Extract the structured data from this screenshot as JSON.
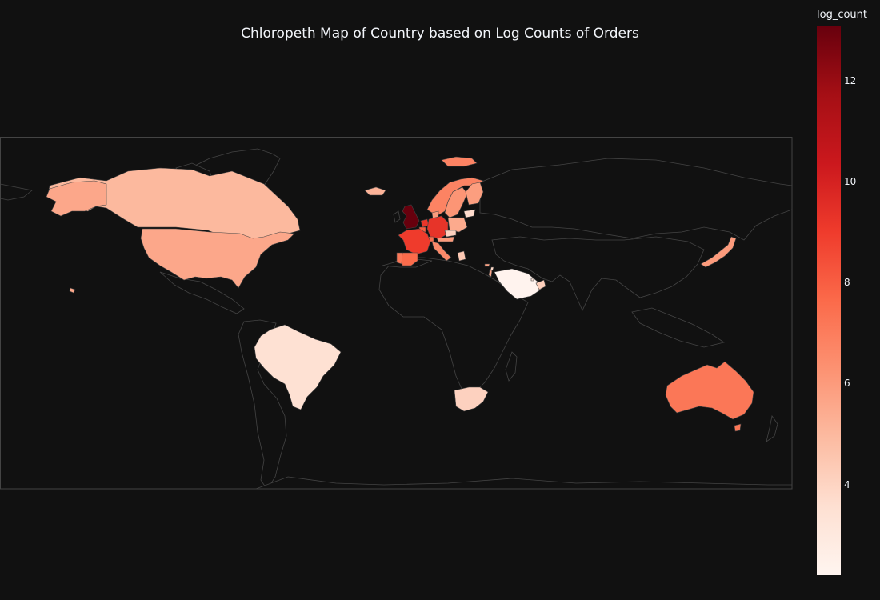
{
  "title": "Chloropeth Map of Country based on Log Counts of Orders",
  "colorbar": {
    "title": "log_count",
    "min": 2.2,
    "max": 13.1,
    "ticks": [
      "4",
      "6",
      "8",
      "10",
      "12"
    ],
    "tick_values": [
      4,
      6,
      8,
      10,
      12
    ]
  },
  "colors": {
    "background": "#111111",
    "land_outline": "#444444",
    "frame": "#444444",
    "scale": [
      "#fff5f0",
      "#fee0d2",
      "#fcbba1",
      "#fc9272",
      "#fb6a4a",
      "#ef3b2c",
      "#cb181d",
      "#a50f15",
      "#67000d"
    ]
  },
  "chart_data": {
    "type": "choropleth",
    "title": "Chloropeth Map of Country based on Log Counts of Orders",
    "color_variable": "log_count",
    "colorscale": "Reds",
    "range": [
      2.2,
      13.1
    ],
    "regions": [
      {
        "region": "United Kingdom",
        "value": 13.1
      },
      {
        "region": "Netherlands",
        "value": 9.2
      },
      {
        "region": "Germany",
        "value": 9.3
      },
      {
        "region": "France",
        "value": 9.0
      },
      {
        "region": "Spain",
        "value": 7.6
      },
      {
        "region": "Portugal",
        "value": 7.2
      },
      {
        "region": "Belgium",
        "value": 8.0
      },
      {
        "region": "Switzerland",
        "value": 7.5
      },
      {
        "region": "Italy",
        "value": 6.6
      },
      {
        "region": "Austria",
        "value": 6.0
      },
      {
        "region": "Denmark",
        "value": 6.0
      },
      {
        "region": "Norway",
        "value": 6.8
      },
      {
        "region": "Sweden",
        "value": 6.2
      },
      {
        "region": "Finland",
        "value": 5.9
      },
      {
        "region": "Poland",
        "value": 5.5
      },
      {
        "region": "Czech Republic",
        "value": 4.1
      },
      {
        "region": "Lithuania",
        "value": 3.7
      },
      {
        "region": "Greece",
        "value": 4.4
      },
      {
        "region": "Cyprus",
        "value": 5.8
      },
      {
        "region": "Iceland",
        "value": 5.2
      },
      {
        "region": "Israel",
        "value": 5.6
      },
      {
        "region": "Lebanon",
        "value": 3.8
      },
      {
        "region": "Saudi Arabia",
        "value": 2.3
      },
      {
        "region": "United Arab Emirates",
        "value": 4.2
      },
      {
        "region": "Bahrain",
        "value": 3.0
      },
      {
        "region": "Canada",
        "value": 5.0
      },
      {
        "region": "United States",
        "value": 5.6
      },
      {
        "region": "Brazil",
        "value": 3.5
      },
      {
        "region": "South Africa",
        "value": 4.1
      },
      {
        "region": "Japan",
        "value": 6.0
      },
      {
        "region": "Australia",
        "value": 7.2
      },
      {
        "region": "Singapore",
        "value": 6.3
      }
    ]
  }
}
